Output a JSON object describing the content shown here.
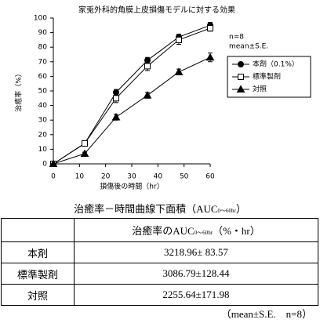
{
  "chart_data": {
    "type": "line",
    "title": "家兎外科的角膜上皮損傷モデルに対する効果",
    "xlabel": "損傷後の時間（hr）",
    "ylabel": "治癒率（%）",
    "annotations": [
      "n=8",
      "mean±S.E."
    ],
    "x": [
      0,
      12,
      24,
      36,
      48,
      60
    ],
    "series": [
      {
        "name": "本剤（0.1%）",
        "color": "#000000",
        "marker": "circle",
        "values": [
          0,
          14,
          49,
          71,
          87,
          95
        ],
        "errors": [
          0,
          1,
          2,
          2,
          2,
          2
        ]
      },
      {
        "name": "標準製剤",
        "color": "#000000",
        "marker": "square",
        "values": [
          0,
          14,
          45,
          67,
          85,
          93
        ],
        "errors": [
          0,
          1,
          3,
          3,
          3,
          2
        ]
      },
      {
        "name": "対照",
        "color": "#000000",
        "marker": "triangle",
        "values": [
          0,
          7,
          32,
          47,
          63,
          73
        ],
        "errors": [
          0,
          1,
          2,
          2,
          2,
          3
        ]
      }
    ],
    "xlim": [
      0,
      60
    ],
    "xticks": [
      0,
      10,
      20,
      30,
      40,
      50,
      60
    ],
    "ylim": [
      0,
      100
    ],
    "yticks": [
      0,
      10,
      20,
      30,
      40,
      50,
      60,
      70,
      80,
      90,
      100
    ],
    "grid": false
  },
  "table": {
    "caption": {
      "text": "治癒率－時間曲線下面積（AUC",
      "sub": "0～60hr",
      "end": "）"
    },
    "header": {
      "text": "治癒率のAUC",
      "sub": "0～60hr",
      "end": "（%・hr）"
    },
    "rows": [
      [
        "本剤",
        "3218.96± 83.57"
      ],
      [
        "標準製剤",
        "3086.79±128.44"
      ],
      [
        "対照",
        "2255.64±171.98"
      ]
    ],
    "footer": "（mean±S.E.　n=8）"
  }
}
